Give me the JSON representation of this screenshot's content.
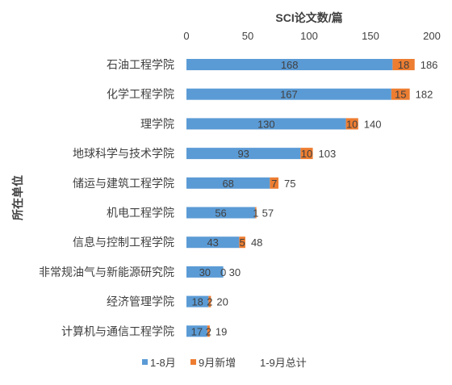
{
  "chart_data": {
    "type": "bar",
    "orientation": "horizontal",
    "stacked": true,
    "title": "",
    "xlabel": "SCI论文数/篇",
    "ylabel": "所在单位",
    "xlim": [
      0,
      200
    ],
    "xticks": [
      0,
      50,
      100,
      150,
      200
    ],
    "categories": [
      "石油工程学院",
      "化学工程学院",
      "理学院",
      "地球科学与技术学院",
      "储运与建筑工程学院",
      "机电工程学院",
      "信息与控制工程学院",
      "非常规油气与新能源研究院",
      "经济管理学院",
      "计算机与通信工程学院"
    ],
    "series": [
      {
        "name": "1-8月",
        "color": "#5B9BD5",
        "values": [
          168,
          167,
          130,
          93,
          68,
          56,
          43,
          30,
          18,
          17
        ]
      },
      {
        "name": "9月新增",
        "color": "#ED7D31",
        "values": [
          18,
          15,
          10,
          10,
          7,
          1,
          5,
          0,
          2,
          2
        ]
      }
    ],
    "totals": {
      "name": "1-9月总计",
      "values": [
        186,
        182,
        140,
        103,
        75,
        57,
        48,
        30,
        20,
        19
      ]
    },
    "axis_position": "top",
    "grid": false,
    "legend": "bottom"
  }
}
